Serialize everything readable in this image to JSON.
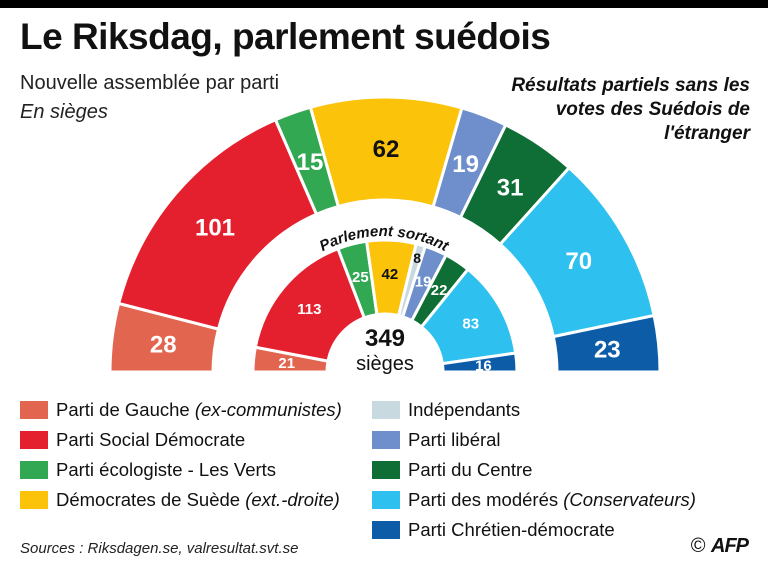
{
  "title": "Le Riksdag, parlement suédois",
  "subtitle": "Nouvelle assemblée par parti",
  "unit": "En sièges",
  "note": "Résultats partiels sans les votes des Suédois de l'étranger",
  "center_total": "349",
  "center_label": "sièges",
  "inner_ring_title": "Parlement sortant",
  "chart_data": {
    "type": "pie",
    "subtype": "hemicycle",
    "title": "Le Riksdag, parlement suédois",
    "total_seats": 349,
    "parties": [
      {
        "name": "Parti de Gauche",
        "note": "(ex-communistes)",
        "color": "#e2654f"
      },
      {
        "name": "Parti Social Démocrate",
        "note": "",
        "color": "#e5202e"
      },
      {
        "name": "Parti écologiste - Les Verts",
        "note": "",
        "color": "#33a852"
      },
      {
        "name": "Démocrates de Suède",
        "note": "(ext.-droite)",
        "color": "#fcc30b"
      },
      {
        "name": "Indépendants",
        "note": "",
        "color": "#c9d9e0"
      },
      {
        "name": "Parti libéral",
        "note": "",
        "color": "#6e8fcb"
      },
      {
        "name": "Parti du Centre",
        "note": "",
        "color": "#0e6e35"
      },
      {
        "name": "Parti des modérés",
        "note": "(Conservateurs)",
        "color": "#2ec0ef"
      },
      {
        "name": "Parti Chrétien-démocrate",
        "note": "",
        "color": "#0d5ca8"
      }
    ],
    "series": [
      {
        "name": "Nouvelle assemblée",
        "values": [
          28,
          101,
          15,
          62,
          0,
          19,
          31,
          70,
          23
        ]
      },
      {
        "name": "Parlement sortant",
        "values": [
          21,
          113,
          25,
          42,
          8,
          19,
          22,
          83,
          16
        ]
      }
    ]
  },
  "sources": "Sources : Riksdagen.se, valresultat.svt.se",
  "credit": {
    "symbol": "©",
    "agency": "AFP"
  }
}
